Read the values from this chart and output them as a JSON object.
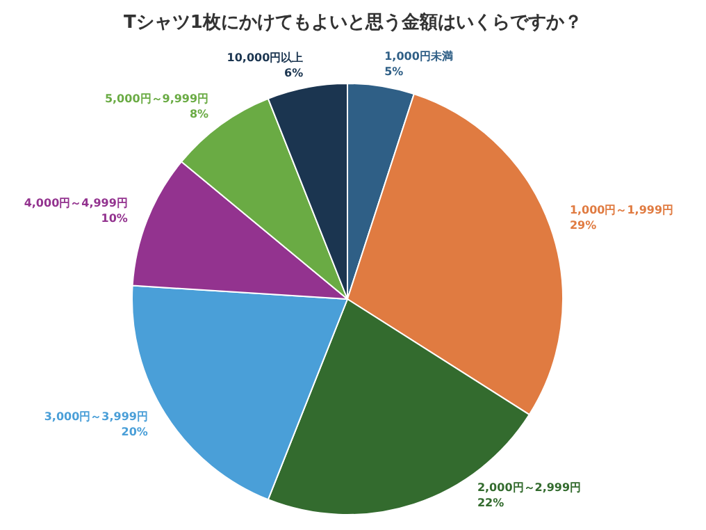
{
  "chart_data": {
    "type": "pie",
    "title": "Tシャツ1枚にかけてもよいと思う金額はいくらですか？",
    "categories": [
      "1,000円未満",
      "1,000円～1,999円",
      "2,000円～2,999円",
      "3,000円～3,999円",
      "4,000円～4,999円",
      "5,000円～9,999円",
      "10,000円以上"
    ],
    "values": [
      5,
      29,
      22,
      20,
      10,
      8,
      6
    ],
    "value_labels": [
      "5%",
      "29%",
      "22%",
      "20%",
      "10%",
      "8%",
      "6%"
    ],
    "colors": [
      "#2f5f86",
      "#e07b41",
      "#336b2e",
      "#4a9fd8",
      "#93338f",
      "#6aab44",
      "#1b3550"
    ]
  }
}
